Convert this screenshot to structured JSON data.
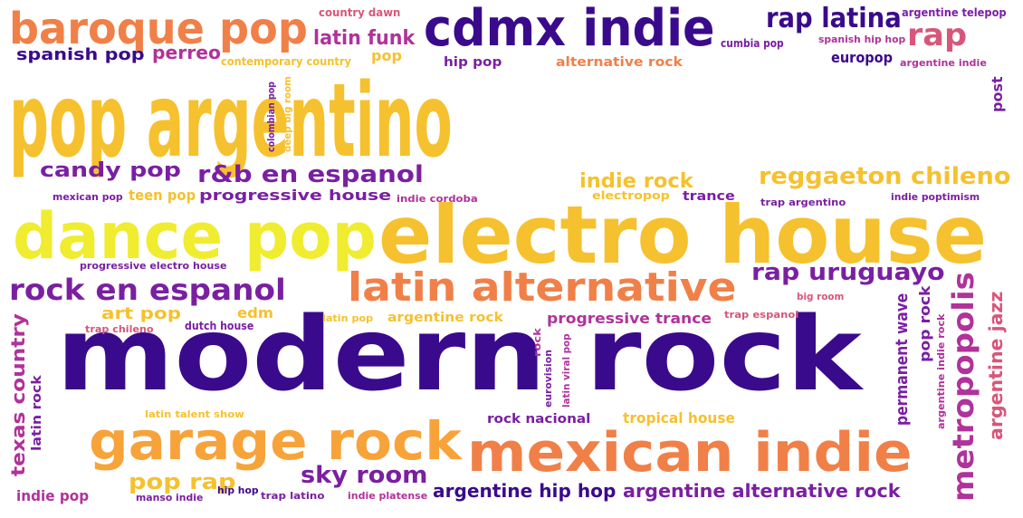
{
  "palette": {
    "indigo": "#3a0a8c",
    "purple": "#7a1fa2",
    "magenta": "#b0329a",
    "pink": "#d8567a",
    "coral": "#f08048",
    "orange": "#f7a33a",
    "amber": "#f6c12e",
    "yellow": "#f0ec30"
  },
  "words": [
    {
      "text": "pop argentino",
      "color": "amber"
    },
    {
      "text": "modern rock",
      "color": "indigo"
    },
    {
      "text": "electro house",
      "color": "amber"
    },
    {
      "text": "dance pop",
      "color": "yellow"
    },
    {
      "text": "mexican indie",
      "color": "coral"
    },
    {
      "text": "garage rock",
      "color": "orange"
    },
    {
      "text": "cdmx indie",
      "color": "indigo"
    },
    {
      "text": "baroque pop",
      "color": "coral"
    },
    {
      "text": "latin alternative",
      "color": "coral"
    },
    {
      "text": "rock en espanol",
      "color": "purple"
    },
    {
      "text": "reggaeton chileno",
      "color": "amber"
    },
    {
      "text": "r&b en espanol",
      "color": "purple"
    },
    {
      "text": "rap uruguayo",
      "color": "purple"
    },
    {
      "text": "metropopolis",
      "color": "magenta"
    },
    {
      "text": "rap latina",
      "color": "indigo"
    },
    {
      "text": "rap",
      "color": "pink"
    },
    {
      "text": "candy pop",
      "color": "purple"
    },
    {
      "text": "latin funk",
      "color": "magenta"
    },
    {
      "text": "spanish pop",
      "color": "indigo"
    },
    {
      "text": "perreo",
      "color": "magenta"
    },
    {
      "text": "sky room",
      "color": "purple"
    },
    {
      "text": "pop rap",
      "color": "amber"
    },
    {
      "text": "argentine hip hop",
      "color": "indigo"
    },
    {
      "text": "argentine alternative rock",
      "color": "purple"
    },
    {
      "text": "indie rock",
      "color": "amber"
    },
    {
      "text": "progressive house",
      "color": "purple"
    },
    {
      "text": "teen pop",
      "color": "amber"
    },
    {
      "text": "texas country",
      "color": "magenta"
    },
    {
      "text": "argentine jazz",
      "color": "pink"
    },
    {
      "text": "pop rock",
      "color": "purple"
    },
    {
      "text": "permanent wave",
      "color": "purple"
    },
    {
      "text": "art pop",
      "color": "amber"
    },
    {
      "text": "latin rock",
      "color": "purple"
    },
    {
      "text": "progressive trance",
      "color": "magenta"
    },
    {
      "text": "argentine rock",
      "color": "amber"
    },
    {
      "text": "tropical house",
      "color": "amber"
    },
    {
      "text": "rock nacional",
      "color": "purple"
    },
    {
      "text": "indie pop",
      "color": "magenta"
    },
    {
      "text": "alternative rock",
      "color": "coral"
    },
    {
      "text": "hip pop",
      "color": "purple"
    },
    {
      "text": "europop",
      "color": "indigo"
    },
    {
      "text": "trance",
      "color": "purple"
    },
    {
      "text": "edm",
      "color": "amber"
    },
    {
      "text": "pop",
      "color": "amber"
    },
    {
      "text": "post",
      "color": "purple"
    },
    {
      "text": "electropop",
      "color": "amber"
    },
    {
      "text": "contemporary country",
      "color": "amber"
    },
    {
      "text": "country dawn",
      "color": "pink"
    },
    {
      "text": "argentine telepop",
      "color": "purple"
    },
    {
      "text": "cumbia pop",
      "color": "purple"
    },
    {
      "text": "spanish hip hop",
      "color": "magenta"
    },
    {
      "text": "argentine indie",
      "color": "magenta"
    },
    {
      "text": "colombian pop",
      "color": "purple"
    },
    {
      "text": "deep big room",
      "color": "amber"
    },
    {
      "text": "mexican pop",
      "color": "purple"
    },
    {
      "text": "indie cordoba",
      "color": "magenta"
    },
    {
      "text": "trap argentino",
      "color": "purple"
    },
    {
      "text": "indie poptimism",
      "color": "purple"
    },
    {
      "text": "progressive electro house",
      "color": "purple"
    },
    {
      "text": "big room",
      "color": "pink"
    },
    {
      "text": "trap espanol",
      "color": "pink"
    },
    {
      "text": "latin pop",
      "color": "amber"
    },
    {
      "text": "dutch house",
      "color": "purple"
    },
    {
      "text": "trap chileno",
      "color": "pink"
    },
    {
      "text": "rock",
      "color": "magenta"
    },
    {
      "text": "eurovision",
      "color": "purple"
    },
    {
      "text": "latin viral pop",
      "color": "magenta"
    },
    {
      "text": "argentine indie rock",
      "color": "magenta"
    },
    {
      "text": "latin talent show",
      "color": "amber"
    },
    {
      "text": "manso indie",
      "color": "purple"
    },
    {
      "text": "hip hop",
      "color": "indigo"
    },
    {
      "text": "trap latino",
      "color": "purple"
    },
    {
      "text": "indie platense",
      "color": "magenta"
    }
  ]
}
